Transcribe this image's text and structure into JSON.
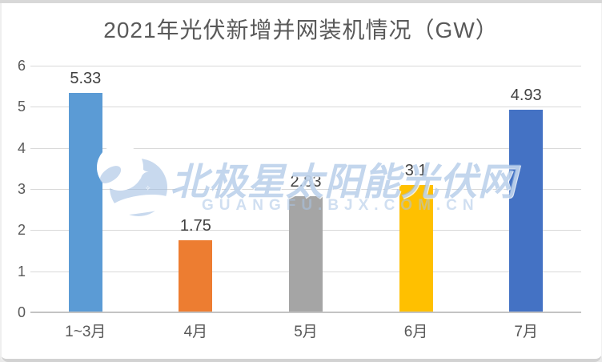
{
  "chart_data": {
    "type": "bar",
    "title": "2021年光伏新增并网装机情况（GW）",
    "categories": [
      "1~3月",
      "4月",
      "5月",
      "6月",
      "7月"
    ],
    "values": [
      5.33,
      1.75,
      2.83,
      3.1,
      4.93
    ],
    "value_labels": [
      "5.33",
      "1.75",
      "2.83",
      "3.1",
      "4.93"
    ],
    "bar_colors": [
      "#5b9bd5",
      "#ed7d31",
      "#a5a5a5",
      "#ffc000",
      "#4472c4"
    ],
    "xlabel": "",
    "ylabel": "",
    "ylim": [
      0,
      6
    ],
    "yticks": [
      0,
      1,
      2,
      3,
      4,
      5,
      6
    ],
    "grid": true,
    "legend": "none"
  },
  "watermark": {
    "site_name": "北极星太阳能光伏网",
    "site_url": "GUANGFU.BJX.COM.CN",
    "star_glyph": "✦",
    "sparkle_glyph": "✧"
  },
  "colors": {
    "title_text": "#595959",
    "axis_text": "#595959",
    "value_label_text": "#404040",
    "gridline": "#d9d9d9",
    "axis_line": "#c3c3c3",
    "background": "#ffffff",
    "watermark_blue": "#9ebde2"
  }
}
